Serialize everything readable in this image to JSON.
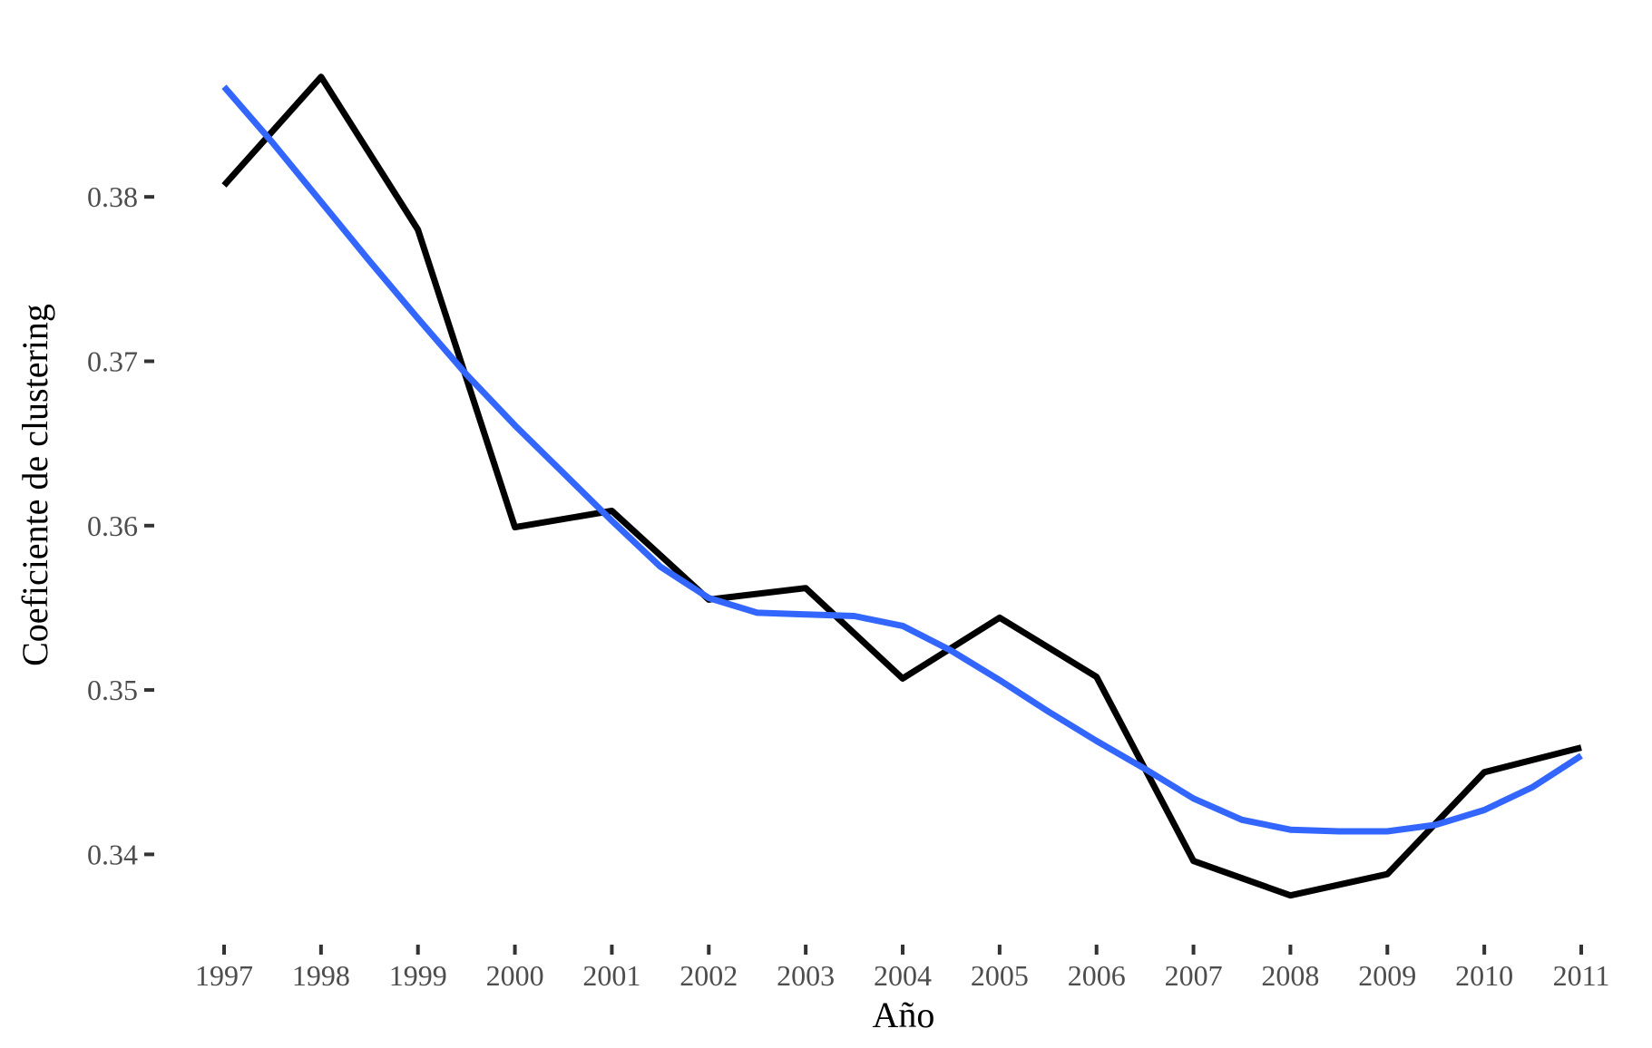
{
  "chart_data": {
    "type": "line",
    "xlabel": "Año",
    "ylabel": "Coeficiente de clustering",
    "xlim": [
      1997,
      2011
    ],
    "ylim": [
      0.3355,
      0.389
    ],
    "x_ticks": [
      "1997",
      "1998",
      "1999",
      "2000",
      "2001",
      "2002",
      "2003",
      "2004",
      "2005",
      "2006",
      "2007",
      "2008",
      "2009",
      "2010",
      "2011"
    ],
    "y_ticks": [
      "0.34",
      "0.35",
      "0.36",
      "0.37",
      "0.38"
    ],
    "grid": false,
    "series": [
      {
        "kind": "observed",
        "color": "#000000",
        "x": [
          1997,
          1998,
          1999,
          2000,
          2001,
          2002,
          2003,
          2004,
          2005,
          2006,
          2007,
          2008,
          2009,
          2010,
          2011
        ],
        "y": [
          0.3807,
          0.3873,
          0.378,
          0.3599,
          0.3609,
          0.3555,
          0.3562,
          0.3507,
          0.3544,
          0.3508,
          0.3396,
          0.3375,
          0.3388,
          0.345,
          0.3465
        ]
      },
      {
        "kind": "smooth",
        "color": "#3366FF",
        "x": [
          1997,
          1997.5,
          1998,
          1998.5,
          1999,
          1999.5,
          2000,
          2000.5,
          2001,
          2001.5,
          2002,
          2002.5,
          2003,
          2003.5,
          2004,
          2004.5,
          2005,
          2005.5,
          2006,
          2006.5,
          2007,
          2007.5,
          2008,
          2008.5,
          2009,
          2009.5,
          2010,
          2010.5,
          2011
        ],
        "y": [
          0.3867,
          0.3833,
          0.3797,
          0.3761,
          0.3726,
          0.3692,
          0.3661,
          0.3632,
          0.3603,
          0.3575,
          0.3556,
          0.3547,
          0.3546,
          0.3545,
          0.3539,
          0.3524,
          0.3506,
          0.3487,
          0.3469,
          0.3452,
          0.3434,
          0.3421,
          0.3415,
          0.3414,
          0.3414,
          0.3418,
          0.3427,
          0.3441,
          0.346
        ]
      }
    ]
  }
}
